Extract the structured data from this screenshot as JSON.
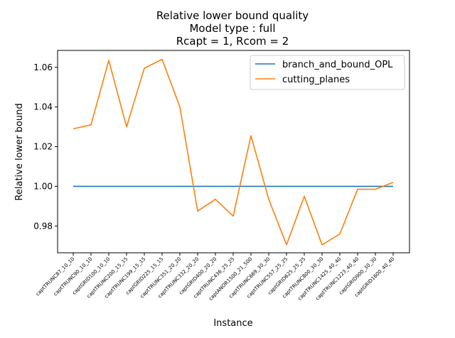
{
  "chart_data": {
    "type": "line",
    "title_lines": [
      "Relative lower bound quality",
      "Model type : full",
      "Rcapt = 1, Rcom = 2"
    ],
    "xlabel": "Instance",
    "ylabel": "Relative lower bound",
    "categories": [
      "captTRUNC87_10_10",
      "captTRUNC90_10_10",
      "captGRID100_10_10",
      "captTRUNC200_15_15",
      "captTRUNC199_15_15",
      "captGRID225_15_15",
      "captTRUNC351_20_20",
      "captTRUNC332_20_20",
      "captGRID400_20_20",
      "captTRUNC436_25_25",
      "captANOR1500_21_500",
      "captTRUNC669_30_30",
      "captTRUNC557_25_25",
      "captGRID625_25_25",
      "captTRUNC800_30_30",
      "captTRUNC1425_40_40",
      "captTRUNC1223_40_40",
      "captGRID900_30_30",
      "captGRID1600_40_40"
    ],
    "series": [
      {
        "name": "branch_and_bound_OPL",
        "color": "#1f77b4",
        "values": [
          1.0,
          1.0,
          1.0,
          1.0,
          1.0,
          1.0,
          1.0,
          1.0,
          1.0,
          1.0,
          1.0,
          1.0,
          1.0,
          1.0,
          1.0,
          1.0,
          1.0,
          1.0,
          1.0
        ]
      },
      {
        "name": "cutting_planes",
        "color": "#ff7f0e",
        "values": [
          1.029,
          1.031,
          1.0635,
          1.03,
          1.0595,
          1.064,
          1.04,
          0.9875,
          0.9935,
          0.985,
          1.0255,
          0.9935,
          0.9705,
          0.995,
          0.9705,
          0.976,
          0.9985,
          0.9985,
          1.002
        ]
      }
    ],
    "ylim": [
      0.9665,
      1.0685
    ],
    "yticks": [
      0.98,
      1.0,
      1.02,
      1.04,
      1.06
    ],
    "ytick_labels": [
      "0.98",
      "1.00",
      "1.02",
      "1.04",
      "1.06"
    ],
    "grid": false,
    "legend_position": "top-right"
  }
}
